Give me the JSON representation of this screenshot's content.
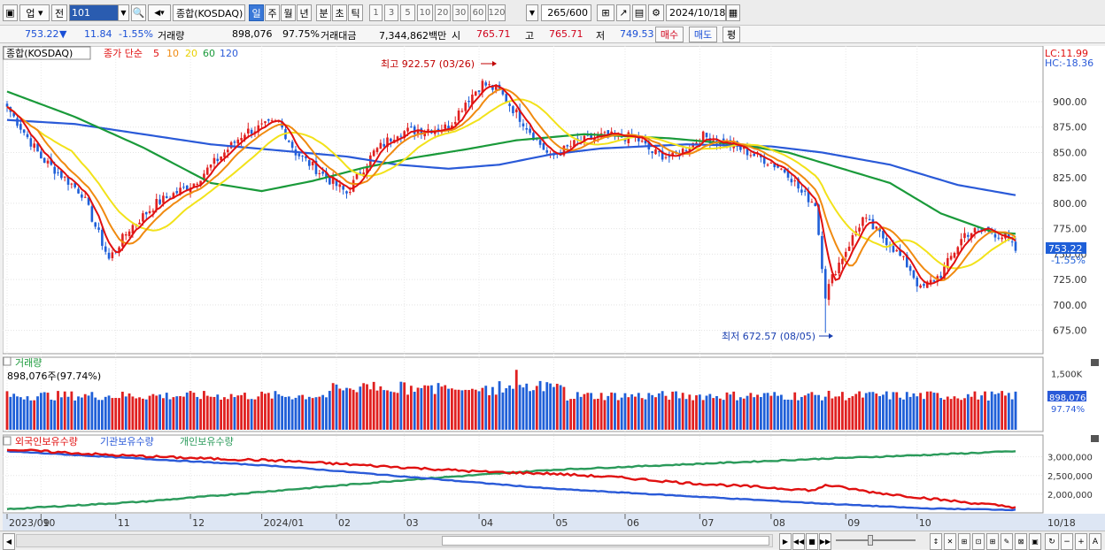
{
  "toolbar": {
    "market": "업",
    "prev": "전",
    "code": "101",
    "name": "종합(KOSDAQ)",
    "periods": [
      "일",
      "주",
      "월",
      "년",
      "분",
      "초",
      "틱"
    ],
    "numbers": [
      "1",
      "3",
      "5",
      "10",
      "20",
      "30",
      "60",
      "120"
    ],
    "count": "265",
    "count_total": "/600",
    "date": "2024/10/18"
  },
  "info": {
    "price": "753.22",
    "change": "11.84",
    "change_pct": "-1.55%",
    "vol_label": "거래량",
    "volume": "898,076",
    "vol_ratio": "97.75%",
    "amt_label": "거래대금",
    "amount": "7,344,862백만",
    "open_label": "시",
    "open": "765.71",
    "high_label": "고",
    "high": "765.71",
    "low_label": "저",
    "low": "749.53",
    "buy_btn": "매수",
    "sell_btn": "매도",
    "eval_btn": "평"
  },
  "colors": {
    "up": "#e02020",
    "down": "#1f5fd8",
    "ma5": "#e01010",
    "ma10": "#f08a10",
    "ma20": "#f2e21a",
    "ma60": "#1a9a3a",
    "ma120": "#2a5ad8",
    "foreign": "#e01010",
    "inst": "#2a5ad8",
    "indiv": "#2a9a5a"
  },
  "chart_data": [
    {
      "type": "candlestick",
      "title": "종합(KOSDAQ)",
      "legend": [
        "종가 단순",
        "5",
        "10",
        "20",
        "60",
        "120"
      ],
      "lc": "LC:11.99",
      "hc": "HC:-18.36",
      "ylim": [
        652,
        940
      ],
      "yticks": [
        "900.00",
        "875.00",
        "850.00",
        "825.00",
        "800.00",
        "775.00",
        "750.00",
        "725.00",
        "700.00",
        "675.00"
      ],
      "xticks": [
        "2023/09",
        "10",
        "11",
        "12",
        "2024/01",
        "02",
        "03",
        "04",
        "05",
        "06",
        "07",
        "08",
        "09",
        "10",
        "10/18"
      ],
      "last_price": "753.22",
      "last_pct": "-1.55%",
      "annotations": {
        "high": "최고 922.57 (03/26)",
        "low": "최저 672.57 (08/05)"
      },
      "close_anchors": [
        [
          0,
          895
        ],
        [
          10,
          845
        ],
        [
          22,
          810
        ],
        [
          30,
          745
        ],
        [
          33,
          760
        ],
        [
          36,
          775
        ],
        [
          44,
          800
        ],
        [
          55,
          820
        ],
        [
          70,
          870
        ],
        [
          80,
          880
        ],
        [
          85,
          850
        ],
        [
          96,
          820
        ],
        [
          100,
          810
        ],
        [
          108,
          850
        ],
        [
          115,
          870
        ],
        [
          130,
          875
        ],
        [
          135,
          900
        ],
        [
          140,
          918
        ],
        [
          145,
          910
        ],
        [
          152,
          880
        ],
        [
          160,
          845
        ],
        [
          168,
          860
        ],
        [
          175,
          866
        ],
        [
          185,
          865
        ],
        [
          190,
          850
        ],
        [
          196,
          845
        ],
        [
          205,
          866
        ],
        [
          215,
          855
        ],
        [
          225,
          840
        ],
        [
          230,
          830
        ],
        [
          234,
          810
        ],
        [
          238,
          800
        ],
        [
          241,
          710
        ],
        [
          244,
          735
        ],
        [
          248,
          760
        ],
        [
          252,
          785
        ],
        [
          260,
          760
        ],
        [
          266,
          735
        ],
        [
          269,
          715
        ],
        [
          275,
          730
        ],
        [
          282,
          770
        ],
        [
          288,
          775
        ],
        [
          294,
          766
        ],
        [
          297,
          753.22
        ]
      ],
      "ma120_anchors": [
        [
          0,
          882
        ],
        [
          20,
          878
        ],
        [
          40,
          868
        ],
        [
          60,
          858
        ],
        [
          80,
          852
        ],
        [
          100,
          846
        ],
        [
          115,
          838
        ],
        [
          130,
          834
        ],
        [
          145,
          838
        ],
        [
          160,
          848
        ],
        [
          175,
          854
        ],
        [
          200,
          858
        ],
        [
          225,
          856
        ],
        [
          240,
          850
        ],
        [
          260,
          838
        ],
        [
          280,
          818
        ],
        [
          297,
          808
        ]
      ],
      "ma60_anchors": [
        [
          0,
          910
        ],
        [
          20,
          885
        ],
        [
          40,
          855
        ],
        [
          60,
          820
        ],
        [
          75,
          812
        ],
        [
          90,
          822
        ],
        [
          105,
          835
        ],
        [
          120,
          845
        ],
        [
          135,
          853
        ],
        [
          150,
          862
        ],
        [
          170,
          868
        ],
        [
          195,
          864
        ],
        [
          215,
          858
        ],
        [
          230,
          850
        ],
        [
          245,
          835
        ],
        [
          260,
          820
        ],
        [
          275,
          790
        ],
        [
          290,
          772
        ],
        [
          297,
          770
        ]
      ]
    },
    {
      "type": "bar",
      "title": "거래량",
      "value_label": "898,076주(97.74%)",
      "ylim": [
        0,
        1700
      ],
      "yticks": [
        "1,500K"
      ],
      "last_value": "898,076",
      "last_pct": "97.74%"
    },
    {
      "type": "line",
      "series_names": [
        "외국인보유수량",
        "기관보유수량",
        "개인보유수량"
      ],
      "ylim": [
        1500000,
        3300000
      ],
      "yticks": [
        "3,000,000",
        "2,500,000",
        "2,000,000"
      ],
      "foreign_anchors": [
        [
          0,
          3200000
        ],
        [
          30,
          3050000
        ],
        [
          60,
          2950000
        ],
        [
          80,
          2900000
        ],
        [
          100,
          2800000
        ],
        [
          120,
          2700000
        ],
        [
          140,
          2600000
        ],
        [
          160,
          2550000
        ],
        [
          180,
          2450000
        ],
        [
          200,
          2300000
        ],
        [
          220,
          2200000
        ],
        [
          238,
          2100000
        ],
        [
          241,
          2250000
        ],
        [
          255,
          2050000
        ],
        [
          275,
          1850000
        ],
        [
          297,
          1650000
        ]
      ],
      "inst_anchors": [
        [
          0,
          3150000
        ],
        [
          40,
          2950000
        ],
        [
          80,
          2750000
        ],
        [
          120,
          2450000
        ],
        [
          160,
          2150000
        ],
        [
          200,
          1950000
        ],
        [
          240,
          1750000
        ],
        [
          270,
          1620000
        ],
        [
          297,
          1580000
        ]
      ],
      "indiv_anchors": [
        [
          0,
          1600000
        ],
        [
          40,
          1800000
        ],
        [
          80,
          2100000
        ],
        [
          120,
          2400000
        ],
        [
          160,
          2650000
        ],
        [
          200,
          2800000
        ],
        [
          240,
          2950000
        ],
        [
          270,
          3050000
        ],
        [
          297,
          3150000
        ]
      ]
    }
  ]
}
